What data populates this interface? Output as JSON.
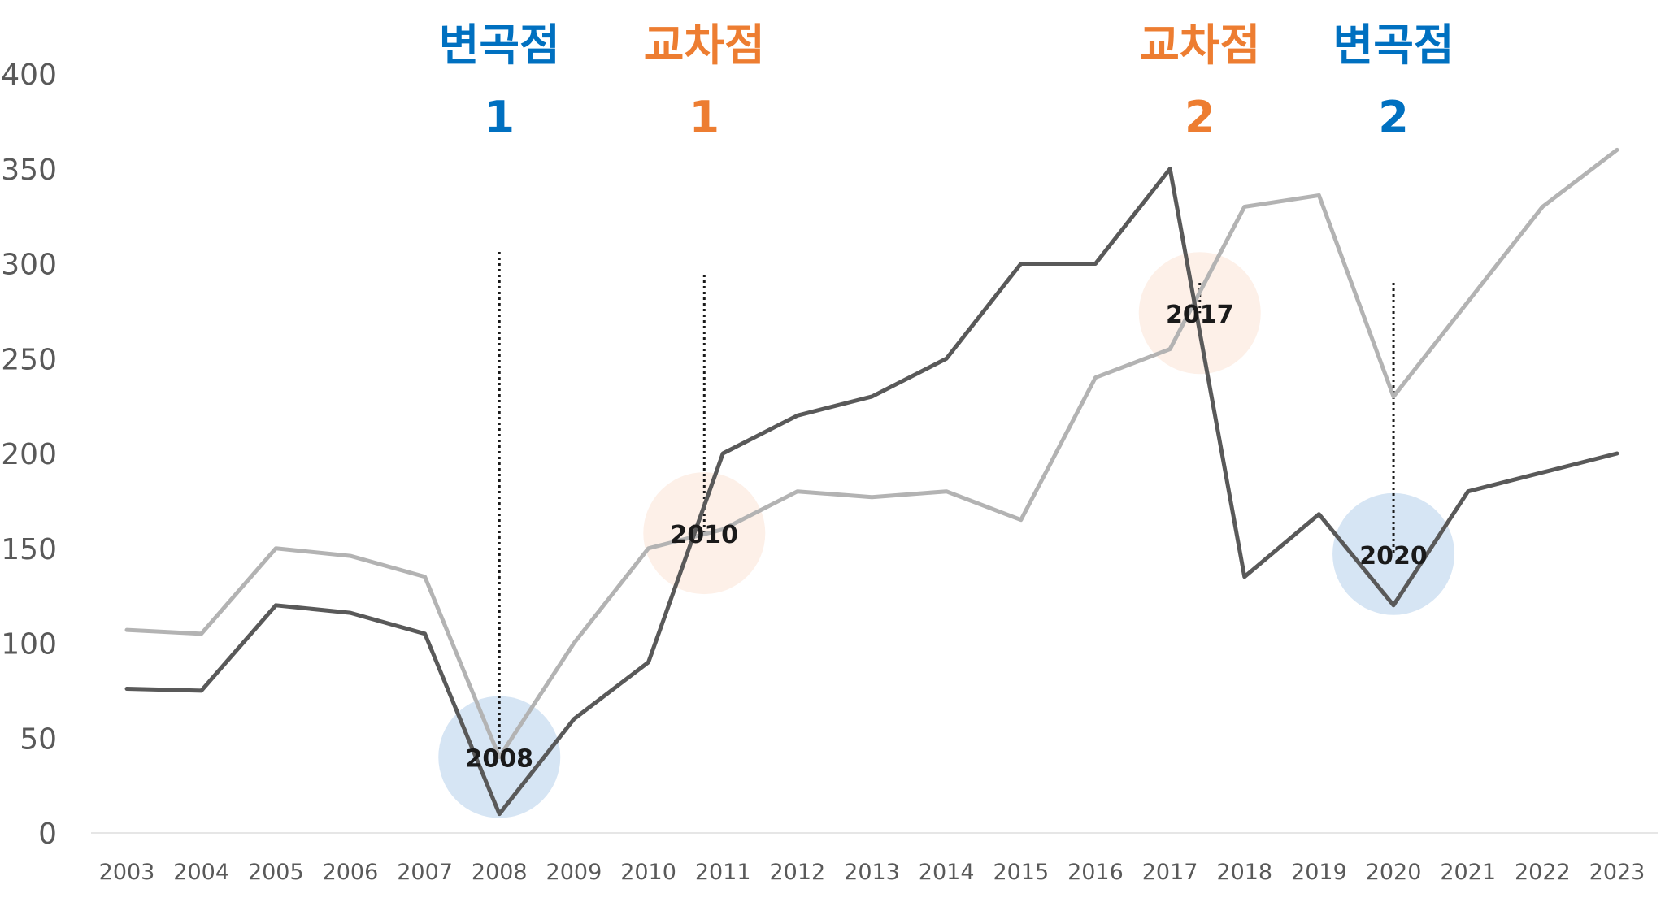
{
  "chart_data": {
    "type": "line",
    "x": [
      "2003",
      "2004",
      "2005",
      "2006",
      "2007",
      "2008",
      "2009",
      "2010",
      "2011",
      "2012",
      "2013",
      "2014",
      "2015",
      "2016",
      "2017",
      "2018",
      "2019",
      "2020",
      "2021",
      "2022",
      "2023"
    ],
    "ylim": [
      0,
      400
    ],
    "yticks": [
      "0",
      "50",
      "100",
      "150",
      "200",
      "250",
      "300",
      "350",
      "400"
    ],
    "grid": false,
    "legend": "none",
    "series": [
      {
        "color": "#b3b3b3",
        "values": [
          107,
          105,
          150,
          146,
          135,
          40,
          100,
          150,
          160,
          180,
          177,
          180,
          165,
          240,
          255,
          330,
          336,
          230,
          280,
          330,
          360
        ]
      },
      {
        "color": "#595959",
        "values": [
          76,
          75,
          120,
          116,
          105,
          10,
          60,
          90,
          200,
          220,
          230,
          250,
          300,
          300,
          350,
          135,
          168,
          120,
          180,
          190,
          200
        ]
      }
    ],
    "annotations": [
      {
        "word": "변곡점",
        "number": "1",
        "color": "#0070c0",
        "circle_color": "#d6e5f4",
        "circle_label": "2008",
        "x": 2008,
        "y": 40,
        "line_top_y": 310
      },
      {
        "word": "교차점",
        "number": "1",
        "color": "#ed7d31",
        "circle_color": "#fdf0e8",
        "circle_label": "2010",
        "x": 2010.75,
        "y": 158,
        "line_top_y": 338
      },
      {
        "word": "교차점",
        "number": "2",
        "color": "#ed7d31",
        "circle_color": "#fdf0e8",
        "circle_label": "2017",
        "x": 2017.4,
        "y": 274,
        "line_top_y": 348
      },
      {
        "word": "변곡점",
        "number": "2",
        "color": "#0070c0",
        "circle_color": "#d6e5f4",
        "circle_label": "2020",
        "x": 2020,
        "y": 147,
        "line_top_y": 348
      }
    ]
  }
}
